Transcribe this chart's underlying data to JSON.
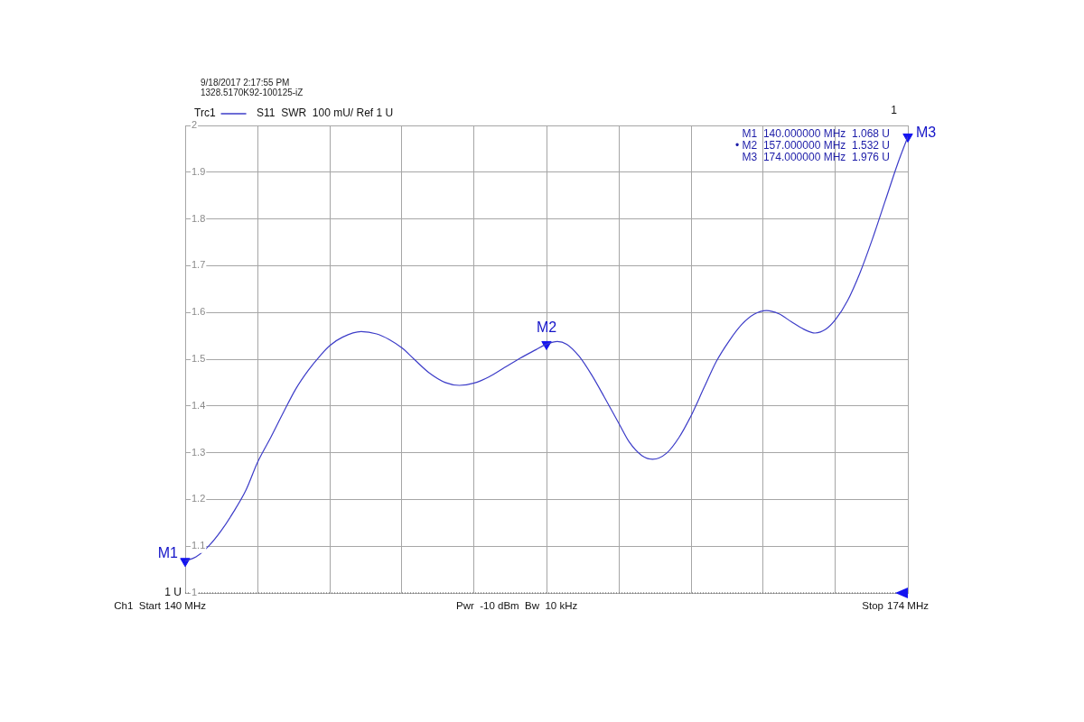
{
  "chart_data": {
    "type": "line",
    "annotations": [
      "9/18/2017 2:17:55 PM",
      "1328.5170K92-100125-iZ",
      "S11  SWR  100 mU/ Ref 1 U",
      "1",
      "M1  140.000000 MHz  1.068 U",
      "• M2  157.000000 MHz  1.532 U",
      "M3  174.000000 MHz  1.976 U",
      "Ch1  Start",
      "Pwr  -10 dBm  Bw  10 kHz",
      "Stop",
      {
        "text": "M1",
        "x": 140,
        "y": 1.068
      },
      {
        "text": "M2",
        "x": 157,
        "y": 1.532
      },
      {
        "text": "M3",
        "x": 174,
        "y": 1.976
      }
    ],
    "xlim": [
      140,
      174
    ],
    "xticks": [
      {
        "value": 140,
        "label": "140 MHz"
      },
      {
        "value": 143.4,
        "label": null
      },
      {
        "value": 146.8,
        "label": null
      },
      {
        "value": 150.2,
        "label": null
      },
      {
        "value": 153.6,
        "label": null
      },
      {
        "value": 157,
        "label": null
      },
      {
        "value": 160.4,
        "label": null
      },
      {
        "value": 163.8,
        "label": null
      },
      {
        "value": 167.2,
        "label": null
      },
      {
        "value": 170.6,
        "label": null
      },
      {
        "value": 174,
        "label": "174 MHz"
      }
    ],
    "ylim": [
      1,
      2
    ],
    "yticks": [
      1,
      1.1,
      1.2,
      1.3,
      1.4,
      1.5,
      1.6,
      1.7,
      1.8,
      1.9,
      2
    ],
    "grid": true,
    "legend": "top left",
    "series": [
      {
        "name": "Trc1",
        "color": "#3c3cc8",
        "marker": "none",
        "x": [
          140,
          140.51,
          141.1,
          141.69,
          142.27,
          142.86,
          143.4,
          144.03,
          144.62,
          145.2,
          145.79,
          146.38,
          146.8,
          147.4,
          148.28,
          149.01,
          149.6,
          150.2,
          150.77,
          151.5,
          152.24,
          152.9,
          153.6,
          154.28,
          155.02,
          155.75,
          156.49,
          157,
          157.51,
          157.95,
          158.54,
          159.13,
          159.72,
          160.4,
          160.89,
          161.48,
          161.99,
          162.65,
          163.24,
          163.8,
          164.41,
          165,
          165.59,
          166.18,
          166.76,
          167.35,
          167.94,
          168.52,
          169.11,
          169.63,
          170.14,
          170.6,
          171.16,
          171.75,
          172.34,
          172.93,
          173.52,
          174
        ],
        "values": [
          1.068,
          1.077,
          1.1,
          1.133,
          1.173,
          1.22,
          1.279,
          1.333,
          1.386,
          1.436,
          1.476,
          1.509,
          1.529,
          1.547,
          1.559,
          1.554,
          1.542,
          1.524,
          1.5,
          1.47,
          1.45,
          1.444,
          1.449,
          1.462,
          1.482,
          1.502,
          1.52,
          1.532,
          1.538,
          1.532,
          1.506,
          1.466,
          1.419,
          1.363,
          1.323,
          1.294,
          1.286,
          1.299,
          1.333,
          1.379,
          1.439,
          1.496,
          1.539,
          1.574,
          1.596,
          1.604,
          1.597,
          1.58,
          1.564,
          1.556,
          1.564,
          1.585,
          1.625,
          1.685,
          1.758,
          1.838,
          1.918,
          1.976
        ]
      },
      {
        "type": "scatter",
        "color": "#1414f0",
        "marker": "triangle",
        "x": [
          140,
          157,
          174
        ],
        "values": [
          1.068,
          1.532,
          1.976
        ]
      }
    ],
    "ref_lines": [
      {
        "axis": "y",
        "value": 1,
        "label": "1 U",
        "line_style": "dotted",
        "color": "#505050"
      }
    ]
  }
}
